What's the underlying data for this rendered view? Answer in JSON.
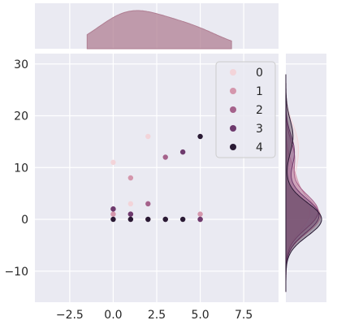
{
  "chart_data": {
    "type": "scatter",
    "kind": "jointplot",
    "x_ticks": [
      -2.5,
      0.0,
      2.5,
      5.0,
      7.5
    ],
    "x_tick_labels": [
      "−2.5",
      "0.0",
      "2.5",
      "5.0",
      "7.5"
    ],
    "y_ticks": [
      -10,
      0,
      10,
      20,
      30
    ],
    "y_tick_labels": [
      "−10",
      "0",
      "10",
      "20",
      "30"
    ],
    "xlim": [
      -4.5,
      9.5
    ],
    "ylim": [
      -16,
      32
    ],
    "grid": true,
    "legend_position": "top-right",
    "series": [
      {
        "name": "0",
        "color": "#f3d4d9",
        "points": [
          [
            0,
            11
          ],
          [
            1,
            3
          ],
          [
            2,
            16
          ],
          [
            5,
            0
          ],
          [
            0,
            1
          ]
        ]
      },
      {
        "name": "1",
        "color": "#d496ac",
        "points": [
          [
            1,
            8
          ],
          [
            0,
            1
          ],
          [
            5,
            1
          ],
          [
            1,
            0
          ],
          [
            2,
            0
          ]
        ]
      },
      {
        "name": "2",
        "color": "#a5628b",
        "points": [
          [
            2,
            3
          ],
          [
            1,
            1
          ],
          [
            0,
            2
          ],
          [
            3,
            12
          ],
          [
            5,
            0
          ]
        ]
      },
      {
        "name": "3",
        "color": "#6e3a6d",
        "points": [
          [
            4,
            13
          ],
          [
            1,
            1
          ],
          [
            0,
            2
          ],
          [
            5,
            0
          ],
          [
            3,
            0
          ]
        ]
      },
      {
        "name": "4",
        "color": "#2a1a34",
        "points": [
          [
            5,
            16
          ],
          [
            4,
            0
          ],
          [
            3,
            0
          ],
          [
            2,
            0
          ],
          [
            1,
            0
          ],
          [
            0,
            0
          ]
        ]
      }
    ],
    "marginal_x_density_color": "#b07f93",
    "marginal_y_density_colors": [
      "#f3d4d9",
      "#d496ac",
      "#a5628b",
      "#6e3a6d",
      "#2a1a34"
    ]
  }
}
